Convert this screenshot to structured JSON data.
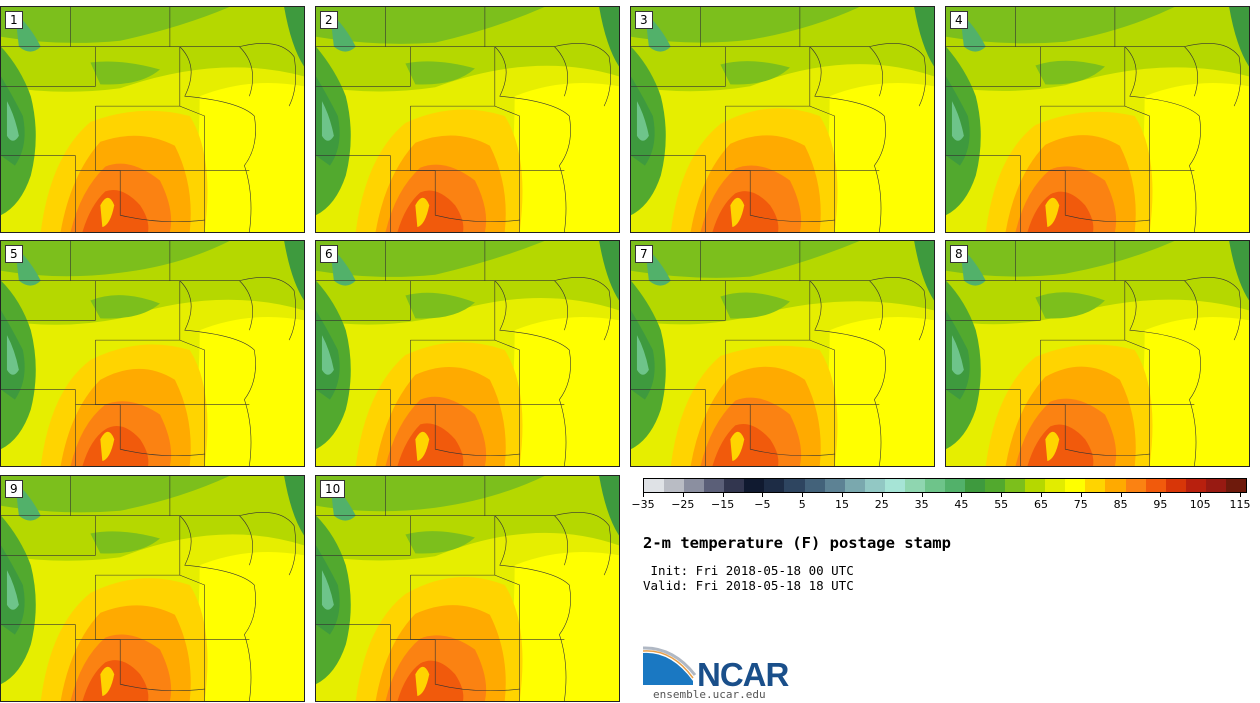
{
  "panels": [
    {
      "label": "1"
    },
    {
      "label": "2"
    },
    {
      "label": "3"
    },
    {
      "label": "4"
    },
    {
      "label": "5"
    },
    {
      "label": "6"
    },
    {
      "label": "7"
    },
    {
      "label": "8"
    },
    {
      "label": "9"
    },
    {
      "label": "10"
    }
  ],
  "colorbar": {
    "colors": [
      "#dfe2e6",
      "#b9bcc4",
      "#8b8fa0",
      "#5b5f78",
      "#32364f",
      "#101a30",
      "#1d2c45",
      "#2e4560",
      "#43627a",
      "#5d8294",
      "#7aa8ae",
      "#92c8c4",
      "#a6e4d6",
      "#8fd6b0",
      "#6ec48a",
      "#52b16a",
      "#3e9a3e",
      "#52a92e",
      "#7cbf1c",
      "#b5d800",
      "#e2ec00",
      "#ffff00",
      "#ffd400",
      "#ffaa00",
      "#fb8212",
      "#f15a0c",
      "#d83608",
      "#b8200e",
      "#981a12",
      "#6e1a0c"
    ],
    "ticks": [
      "-35",
      "-25",
      "-15",
      "-5",
      "5",
      "15",
      "25",
      "35",
      "45",
      "55",
      "65",
      "75",
      "85",
      "95",
      "105",
      "115"
    ]
  },
  "title": "2-m temperature (F) postage stamp",
  "init_label": " Init: Fri 2018-05-18 00 UTC",
  "valid_label": "Valid: Fri 2018-05-18 18 UTC",
  "logo_text": "NCAR",
  "site": "ensemble.ucar.edu"
}
